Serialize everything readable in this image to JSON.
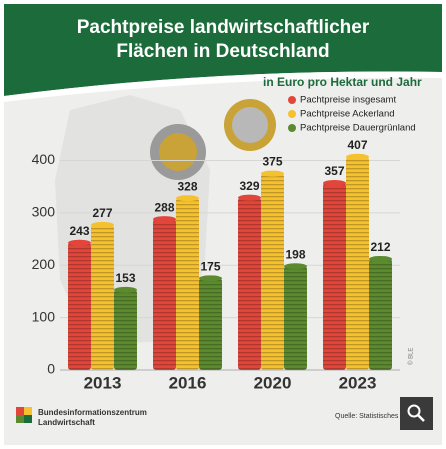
{
  "chart_data": {
    "type": "bar",
    "title": [
      "Pachtpreise landwirtschaftlicher",
      "Flächen in Deutschland"
    ],
    "subtitle": "in Euro pro Hektar und Jahr",
    "categories": [
      "2013",
      "2016",
      "2020",
      "2023"
    ],
    "series": [
      {
        "name": "Pachtpreise insgesamt",
        "color": "#e2463a",
        "values": [
          243,
          288,
          329,
          357
        ]
      },
      {
        "name": "Pachtpreise Ackerland",
        "color": "#f6c12f",
        "values": [
          277,
          328,
          375,
          407
        ]
      },
      {
        "name": "Pachtpreise Dauergrünland",
        "color": "#5c8a2e",
        "values": [
          153,
          175,
          198,
          212
        ]
      }
    ],
    "ylim": [
      0,
      420
    ],
    "yticks": [
      0,
      100,
      200,
      300,
      400
    ],
    "grid": true
  },
  "footer": {
    "logo_text": [
      "Bundesinformationszentrum",
      "Landwirtschaft"
    ],
    "source": "Quelle: Statistisches",
    "credit": "© BLE"
  }
}
